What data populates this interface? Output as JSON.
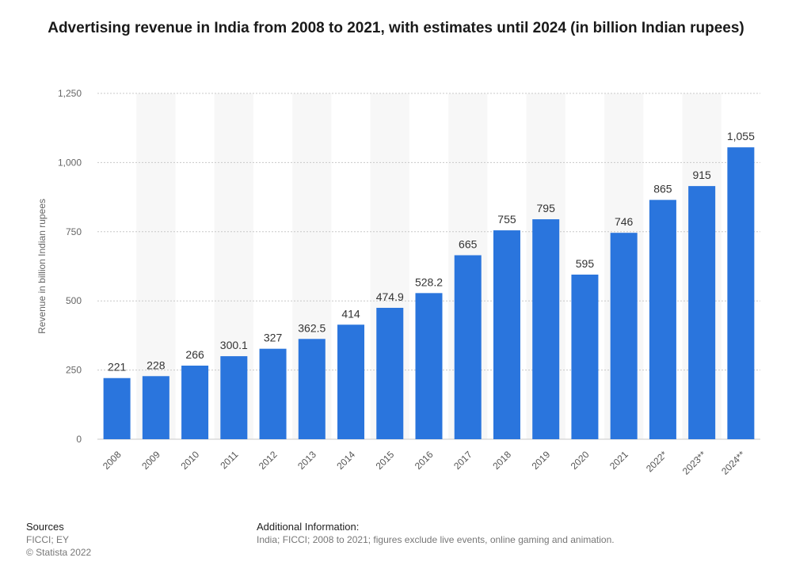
{
  "title": "Advertising revenue in India from 2008 to 2021, with estimates until 2024 (in billion Indian rupees)",
  "chart_data": {
    "type": "bar",
    "categories": [
      "2008",
      "2009",
      "2010",
      "2011",
      "2012",
      "2013",
      "2014",
      "2015",
      "2016",
      "2017",
      "2018",
      "2019",
      "2020",
      "2021",
      "2022*",
      "2023**",
      "2024**"
    ],
    "values": [
      221,
      228,
      266,
      300.1,
      327,
      362.5,
      414,
      474.9,
      528.2,
      665,
      755,
      795,
      595,
      746,
      865,
      915,
      1055
    ],
    "value_labels": [
      "221",
      "228",
      "266",
      "300.1",
      "327",
      "362.5",
      "414",
      "474.9",
      "528.2",
      "665",
      "755",
      "795",
      "595",
      "746",
      "865",
      "915",
      "1,055"
    ],
    "ylabel": "Revenue in billion Indian rupees",
    "ylim": [
      0,
      1250
    ],
    "yticks": [
      0,
      250,
      500,
      750,
      1000,
      1250
    ],
    "ytick_labels": [
      "0",
      "250",
      "500",
      "750",
      "1,000",
      "1,250"
    ],
    "grid": true,
    "bar_color": "#2a75dd"
  },
  "footer": {
    "sources_heading": "Sources",
    "sources_line1": "FICCI; EY",
    "sources_line2": "© Statista 2022",
    "info_heading": "Additional Information:",
    "info_text": "India; FICCI; 2008 to 2021; figures exclude live events, online gaming and animation."
  }
}
